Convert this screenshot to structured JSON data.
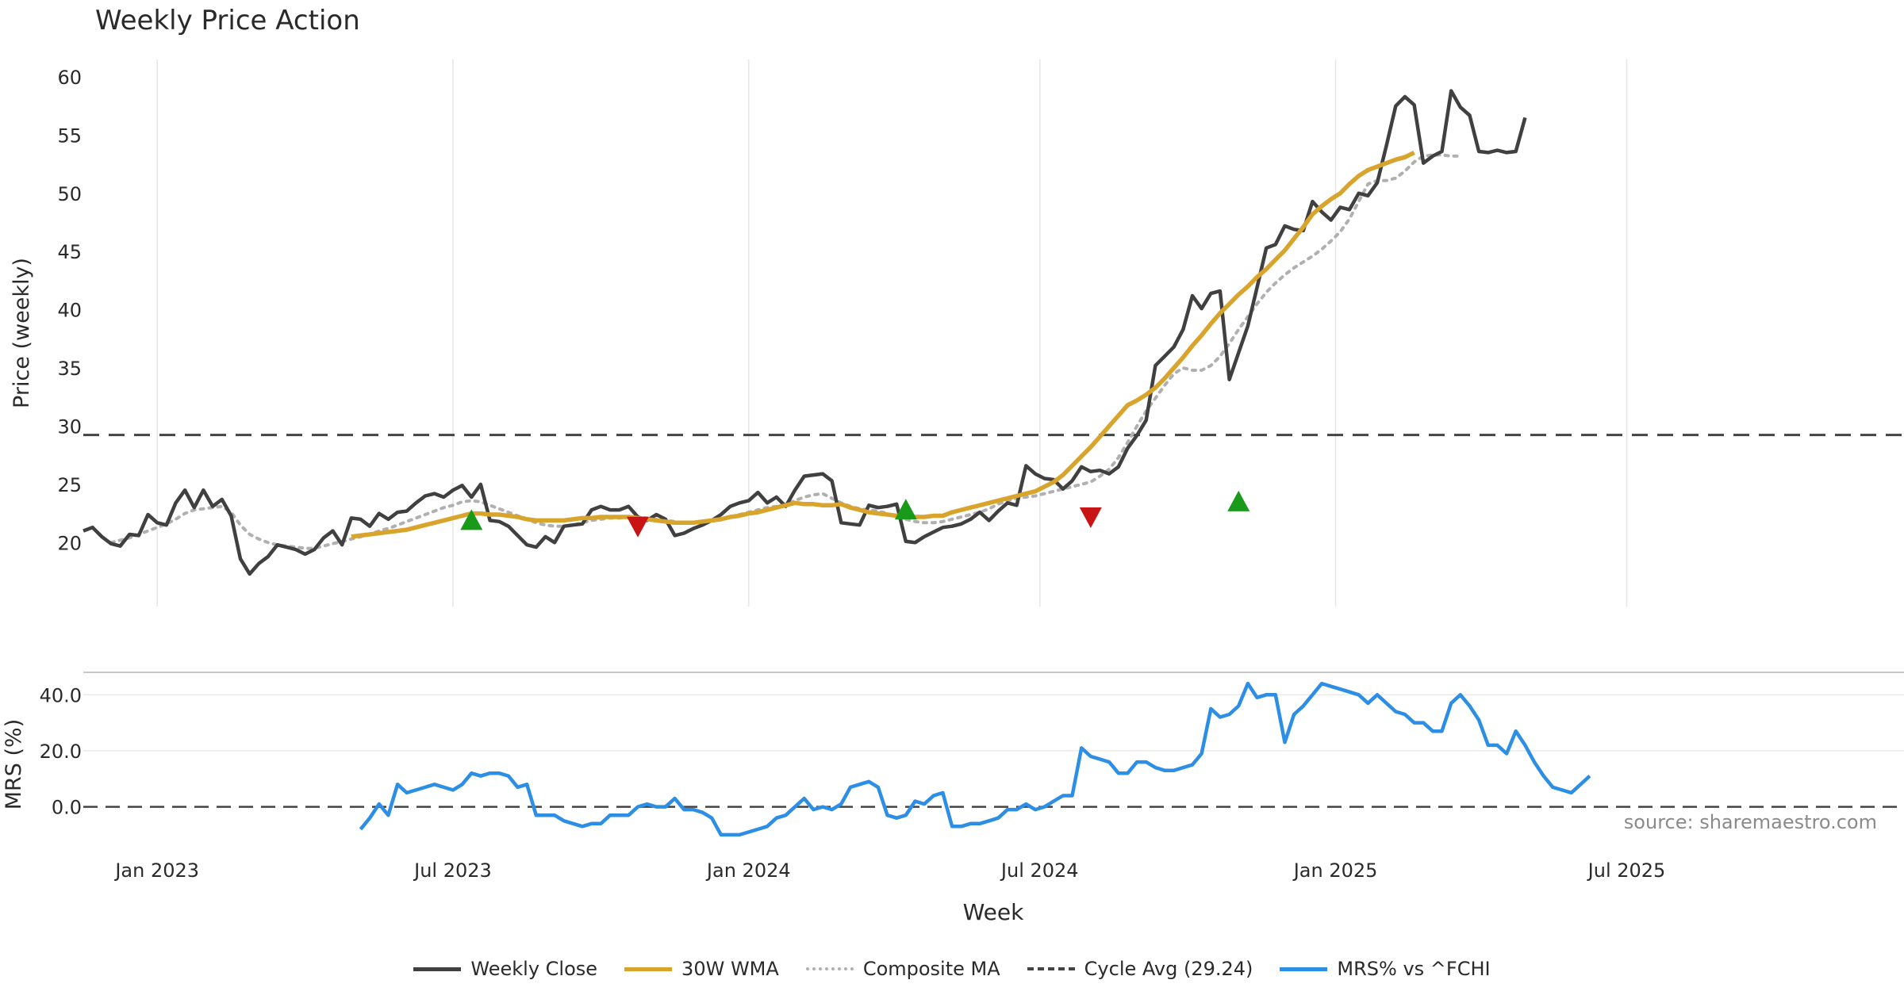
{
  "title": "Weekly Price Action",
  "watermark": "source: sharemaestro.com",
  "colors": {
    "close": "#404040",
    "wma": "#d8a42b",
    "composite": "#b0b0b0",
    "cycle": "#444444",
    "mrs": "#2d8ee6",
    "buy": "#1a9a1a",
    "sell": "#c81414"
  },
  "legend": [
    {
      "key": "close",
      "label": "Weekly Close",
      "style": "solid"
    },
    {
      "key": "wma",
      "label": "30W WMA",
      "style": "solid"
    },
    {
      "key": "composite",
      "label": "Composite MA",
      "style": "dotted"
    },
    {
      "key": "cycle",
      "label": "Cycle Avg (29.24)",
      "style": "dashed"
    },
    {
      "key": "mrs",
      "label": "MRS% vs ^FCHI",
      "style": "solid"
    }
  ],
  "chart_data": [
    {
      "type": "line",
      "panel": "price",
      "ylabel": "Price (weekly)",
      "xlabel": "Week",
      "ylim": [
        14.5,
        61.5
      ],
      "yticks": [
        20,
        25,
        30,
        35,
        40,
        45,
        50,
        55,
        60
      ],
      "x_range_weeks": [
        0,
        197
      ],
      "xticks": [
        {
          "week": 8,
          "label": "Jan 2023"
        },
        {
          "week": 40,
          "label": "Jul 2023"
        },
        {
          "week": 72,
          "label": "Jan 2024"
        },
        {
          "week": 103.5,
          "label": "Jul 2024"
        },
        {
          "week": 135.5,
          "label": "Jan 2025"
        },
        {
          "week": 167,
          "label": "Jul 2025"
        }
      ],
      "cycle_avg": 29.24,
      "series": [
        {
          "name": "Weekly Close",
          "key": "close",
          "start_week": 0,
          "values": [
            21.0,
            21.3,
            20.5,
            19.9,
            19.7,
            20.7,
            20.6,
            22.4,
            21.7,
            21.5,
            23.4,
            24.5,
            23.0,
            24.5,
            23.1,
            23.7,
            22.3,
            18.6,
            17.3,
            18.2,
            18.8,
            19.8,
            19.6,
            19.4,
            19.0,
            19.4,
            20.4,
            21.0,
            19.8,
            22.1,
            22.0,
            21.4,
            22.5,
            22.0,
            22.6,
            22.7,
            23.4,
            24.0,
            24.2,
            23.9,
            24.5,
            24.9,
            23.9,
            25.0,
            21.9,
            21.8,
            21.4,
            20.6,
            19.8,
            19.6,
            20.5,
            20.0,
            21.4,
            21.5,
            21.6,
            22.8,
            23.1,
            22.8,
            22.8,
            23.1,
            22.2,
            21.9,
            22.4,
            22.0,
            20.6,
            20.8,
            21.2,
            21.5,
            21.9,
            22.4,
            23.1,
            23.4,
            23.6,
            24.3,
            23.4,
            23.9,
            23.1,
            24.5,
            25.7,
            25.8,
            25.9,
            25.3,
            21.7,
            21.6,
            21.5,
            23.2,
            23.0,
            23.1,
            23.3,
            20.1,
            20.0,
            20.5,
            20.9,
            21.3,
            21.4,
            21.6,
            22.0,
            22.6,
            21.9,
            22.7,
            23.4,
            23.2,
            26.6,
            25.9,
            25.5,
            25.4,
            24.6,
            25.3,
            26.5,
            26.1,
            26.2,
            25.9,
            26.5,
            28.1,
            29.2,
            30.5,
            35.2,
            36.0,
            36.8,
            38.3,
            41.2,
            40.1,
            41.4,
            41.6,
            34.0,
            36.3,
            38.6,
            41.9,
            45.3,
            45.6,
            47.2,
            46.9,
            46.8,
            49.3,
            48.4,
            47.7,
            48.8,
            48.6,
            50.0,
            49.8,
            50.9,
            54.1,
            57.5,
            58.3,
            57.6,
            52.6,
            53.2,
            53.6,
            58.8,
            57.4,
            56.7,
            53.6,
            53.5,
            53.7,
            53.5,
            53.6,
            56.5
          ]
        },
        {
          "name": "30W WMA",
          "key": "wma",
          "start_week": 29,
          "values": [
            20.5,
            20.6,
            20.7,
            20.8,
            20.9,
            21.0,
            21.1,
            21.3,
            21.5,
            21.7,
            21.9,
            22.1,
            22.3,
            22.5,
            22.5,
            22.4,
            22.4,
            22.3,
            22.2,
            22.0,
            21.9,
            21.9,
            21.9,
            21.9,
            22.0,
            22.1,
            22.1,
            22.2,
            22.2,
            22.2,
            22.2,
            22.1,
            22.0,
            21.9,
            21.8,
            21.7,
            21.7,
            21.7,
            21.8,
            21.9,
            22.0,
            22.2,
            22.3,
            22.5,
            22.6,
            22.8,
            23.0,
            23.2,
            23.4,
            23.3,
            23.3,
            23.2,
            23.2,
            23.3,
            23.0,
            22.8,
            22.6,
            22.5,
            22.4,
            22.3,
            22.3,
            22.2,
            22.2,
            22.3,
            22.3,
            22.6,
            22.8,
            23.0,
            23.2,
            23.4,
            23.6,
            23.8,
            24.0,
            24.2,
            24.4,
            24.8,
            25.2,
            25.8,
            26.6,
            27.4,
            28.2,
            29.1,
            30.0,
            30.9,
            31.8,
            32.2,
            32.7,
            33.3,
            34.1,
            35.0,
            35.9,
            36.9,
            37.8,
            38.8,
            39.7,
            40.5,
            41.3,
            42.0,
            42.8,
            43.5,
            44.3,
            45.1,
            46.1,
            47.1,
            48.2,
            48.9,
            49.5,
            50.0,
            50.8,
            51.5,
            52.0,
            52.3,
            52.6,
            52.9,
            53.1,
            53.5
          ]
        },
        {
          "name": "Composite MA",
          "key": "composite",
          "start_week": 3,
          "values": [
            20.0,
            20.2,
            20.4,
            20.7,
            21.0,
            21.3,
            21.6,
            22.0,
            22.5,
            22.8,
            22.9,
            23.0,
            23.1,
            22.6,
            21.5,
            20.7,
            20.3,
            20.0,
            19.8,
            19.7,
            19.6,
            19.5,
            19.5,
            19.7,
            19.9,
            20.1,
            20.3,
            20.5,
            20.7,
            21.0,
            21.2,
            21.5,
            21.8,
            22.1,
            22.4,
            22.7,
            23.0,
            23.2,
            23.5,
            23.6,
            23.5,
            23.2,
            22.9,
            22.6,
            22.3,
            22.0,
            21.7,
            21.5,
            21.4,
            21.4,
            21.5,
            21.7,
            21.9,
            22.0,
            22.1,
            22.1,
            22.2,
            22.2,
            22.1,
            22.0,
            21.9,
            21.8,
            21.7,
            21.7,
            21.7,
            21.8,
            22.0,
            22.2,
            22.4,
            22.6,
            22.8,
            23.0,
            23.1,
            23.3,
            23.6,
            23.9,
            24.1,
            24.2,
            23.8,
            23.4,
            23.1,
            22.9,
            22.8,
            22.7,
            22.5,
            22.2,
            22.0,
            21.8,
            21.7,
            21.7,
            21.8,
            22.0,
            22.2,
            22.4,
            22.6,
            22.9,
            23.3,
            23.6,
            23.8,
            23.9,
            24.0,
            24.2,
            24.4,
            24.6,
            24.8,
            25.0,
            25.2,
            25.7,
            26.3,
            27.3,
            28.6,
            30.0,
            31.3,
            32.4,
            33.5,
            34.5,
            35.0,
            34.8,
            34.8,
            35.2,
            36.0,
            37.1,
            38.3,
            39.4,
            40.5,
            41.5,
            42.3,
            43.0,
            43.6,
            44.1,
            44.6,
            45.2,
            45.9,
            46.7,
            47.8,
            49.3,
            50.8,
            51.1,
            51.1,
            51.3,
            51.9,
            52.7,
            53.2,
            53.3,
            53.3,
            53.2,
            53.2
          ]
        }
      ],
      "signals": [
        {
          "type": "buy",
          "week": 42,
          "price": 21.9
        },
        {
          "type": "sell",
          "week": 60,
          "price": 21.4
        },
        {
          "type": "buy",
          "week": 89,
          "price": 22.8
        },
        {
          "type": "sell",
          "week": 109,
          "price": 22.2
        },
        {
          "type": "buy",
          "week": 125,
          "price": 23.5
        }
      ]
    },
    {
      "type": "line",
      "panel": "mrs",
      "ylabel": "MRS (%)",
      "ylim": [
        -12,
        48
      ],
      "yticks": [
        {
          "value": 0,
          "label": "0.0"
        },
        {
          "value": 20,
          "label": "20.0"
        },
        {
          "value": 40,
          "label": "40.0"
        }
      ],
      "series": [
        {
          "name": "MRS% vs ^FCHI",
          "key": "mrs",
          "start_week": 30,
          "values": [
            -8,
            -4,
            1,
            -3,
            8,
            5,
            6,
            7,
            8,
            7,
            6,
            8,
            12,
            11,
            12,
            12,
            11,
            7,
            8,
            -3,
            -3,
            -3,
            -5,
            -6,
            -7,
            -6,
            -6,
            -3,
            -3,
            -3,
            0,
            1,
            0,
            0,
            3,
            -1,
            -1,
            -2,
            -4,
            -10,
            -10,
            -10,
            -9,
            -8,
            -7,
            -4,
            -3,
            0,
            3,
            -1,
            0,
            -1,
            1,
            7,
            8,
            9,
            7,
            -3,
            -4,
            -3,
            2,
            1,
            4,
            5,
            -7,
            -7,
            -6,
            -6,
            -5,
            -4,
            -1,
            -1,
            1,
            -1,
            0,
            2,
            4,
            4,
            21,
            18,
            17,
            16,
            12,
            12,
            16,
            16,
            14,
            13,
            13,
            14,
            15,
            19,
            35,
            32,
            33,
            36,
            44,
            39,
            40,
            40,
            23,
            33,
            36,
            40,
            44,
            43,
            42,
            41,
            40,
            37,
            40,
            37,
            34,
            33,
            30,
            30,
            27,
            27,
            37,
            40,
            36,
            31,
            22,
            22,
            19,
            27,
            22,
            16,
            11,
            7,
            6,
            5,
            8,
            11
          ]
        }
      ]
    }
  ]
}
